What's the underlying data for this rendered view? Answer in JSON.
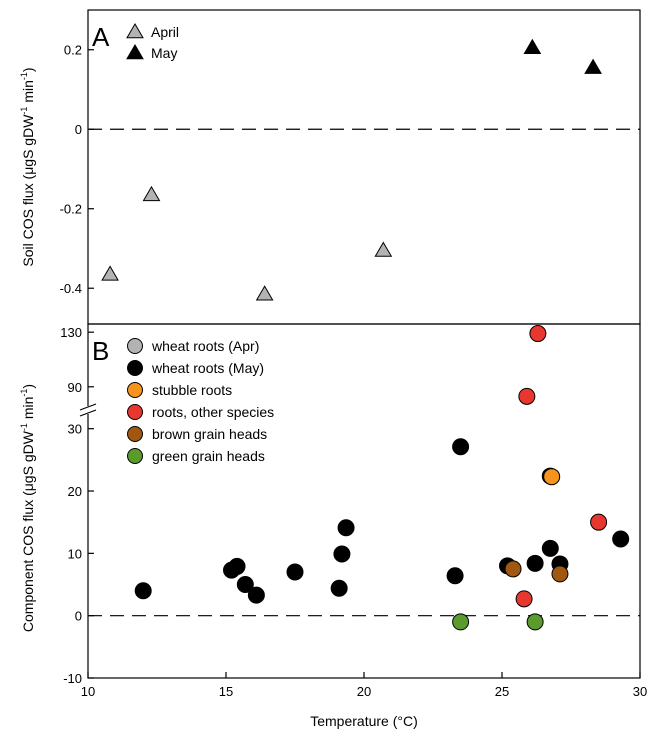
{
  "chart_data": [
    {
      "panel": "A",
      "type": "scatter",
      "ylabel": "Soil COS flux (μgS gDW⁻¹ min⁻¹)",
      "ylabel_parts": {
        "base": "Soil COS flux (μgS gDW",
        "sup1": "-1",
        "mid": " min",
        "sup2": "-1",
        "end": ")"
      },
      "xlim": [
        10,
        30
      ],
      "ylim": [
        -0.49,
        0.3
      ],
      "yticks": [
        -0.4,
        -0.2,
        0,
        0.2
      ],
      "ytick_labels": [
        "-0.4",
        "-0.2",
        "0",
        "0.2"
      ],
      "zero_line": "dashed",
      "legend_position": "top-left",
      "series": [
        {
          "name": "April",
          "marker": "triangle",
          "color": "#b3b3b3",
          "x": [
            10.8,
            12.3,
            16.4,
            20.7
          ],
          "y": [
            -0.365,
            -0.165,
            -0.415,
            -0.305
          ]
        },
        {
          "name": "May",
          "marker": "triangle",
          "color": "#000000",
          "x": [
            26.1,
            28.3
          ],
          "y": [
            0.205,
            0.155
          ]
        }
      ]
    },
    {
      "panel": "B",
      "type": "scatter",
      "ylabel": "Component COS flux (μgS gDW⁻¹ min⁻¹)",
      "ylabel_parts": {
        "base": "Component COS flux (μgS gDW",
        "sup1": "-1",
        "mid": " min",
        "sup2": "-1",
        "end": ")"
      },
      "xlabel": "Temperature (°C)",
      "xlim": [
        10,
        30
      ],
      "xticks": [
        10,
        15,
        20,
        25,
        30
      ],
      "xtick_labels": [
        "10",
        "15",
        "20",
        "25",
        "30"
      ],
      "broken_y_axis": true,
      "ylim_lower": [
        -10,
        33
      ],
      "yticks_lower": [
        -10,
        0,
        10,
        20,
        30
      ],
      "ytick_labels_lower": [
        "-10",
        "0",
        "10",
        "20",
        "30"
      ],
      "ylim_upper": [
        73,
        136
      ],
      "yticks_upper": [
        90,
        130
      ],
      "ytick_labels_upper": [
        "90",
        "130"
      ],
      "zero_line": "dashed",
      "legend_position": "top-left",
      "series": [
        {
          "name": "wheat roots (Apr)",
          "marker": "circle",
          "color": "#b3b3b3",
          "x": [],
          "y": []
        },
        {
          "name": "wheat roots (May)",
          "marker": "circle",
          "color": "#000000",
          "x": [
            12.0,
            15.2,
            15.4,
            15.7,
            16.1,
            17.5,
            19.1,
            19.2,
            19.35,
            23.3,
            23.5,
            25.2,
            26.2,
            26.75,
            26.75,
            27.1,
            29.3
          ],
          "y": [
            4.0,
            7.3,
            7.9,
            5.0,
            3.3,
            7.0,
            4.4,
            9.9,
            14.1,
            6.4,
            27.1,
            8.0,
            8.4,
            10.8,
            22.4,
            8.3,
            12.3
          ]
        },
        {
          "name": "stubble roots",
          "marker": "circle",
          "color": "#f7941d",
          "x": [
            26.8
          ],
          "y": [
            22.3
          ]
        },
        {
          "name": "roots, other species",
          "marker": "circle",
          "color": "#e8372f",
          "x": [
            25.8,
            25.9,
            26.3,
            28.5
          ],
          "y": [
            2.7,
            83,
            129,
            15.0
          ]
        },
        {
          "name": "brown grain heads",
          "marker": "circle",
          "color": "#a0570f",
          "x": [
            25.4,
            27.1
          ],
          "y": [
            7.5,
            6.7
          ]
        },
        {
          "name": "green grain heads",
          "marker": "circle",
          "color": "#5b9a2c",
          "x": [
            23.5,
            26.2
          ],
          "y": [
            -1.0,
            -1.0
          ]
        }
      ]
    }
  ]
}
